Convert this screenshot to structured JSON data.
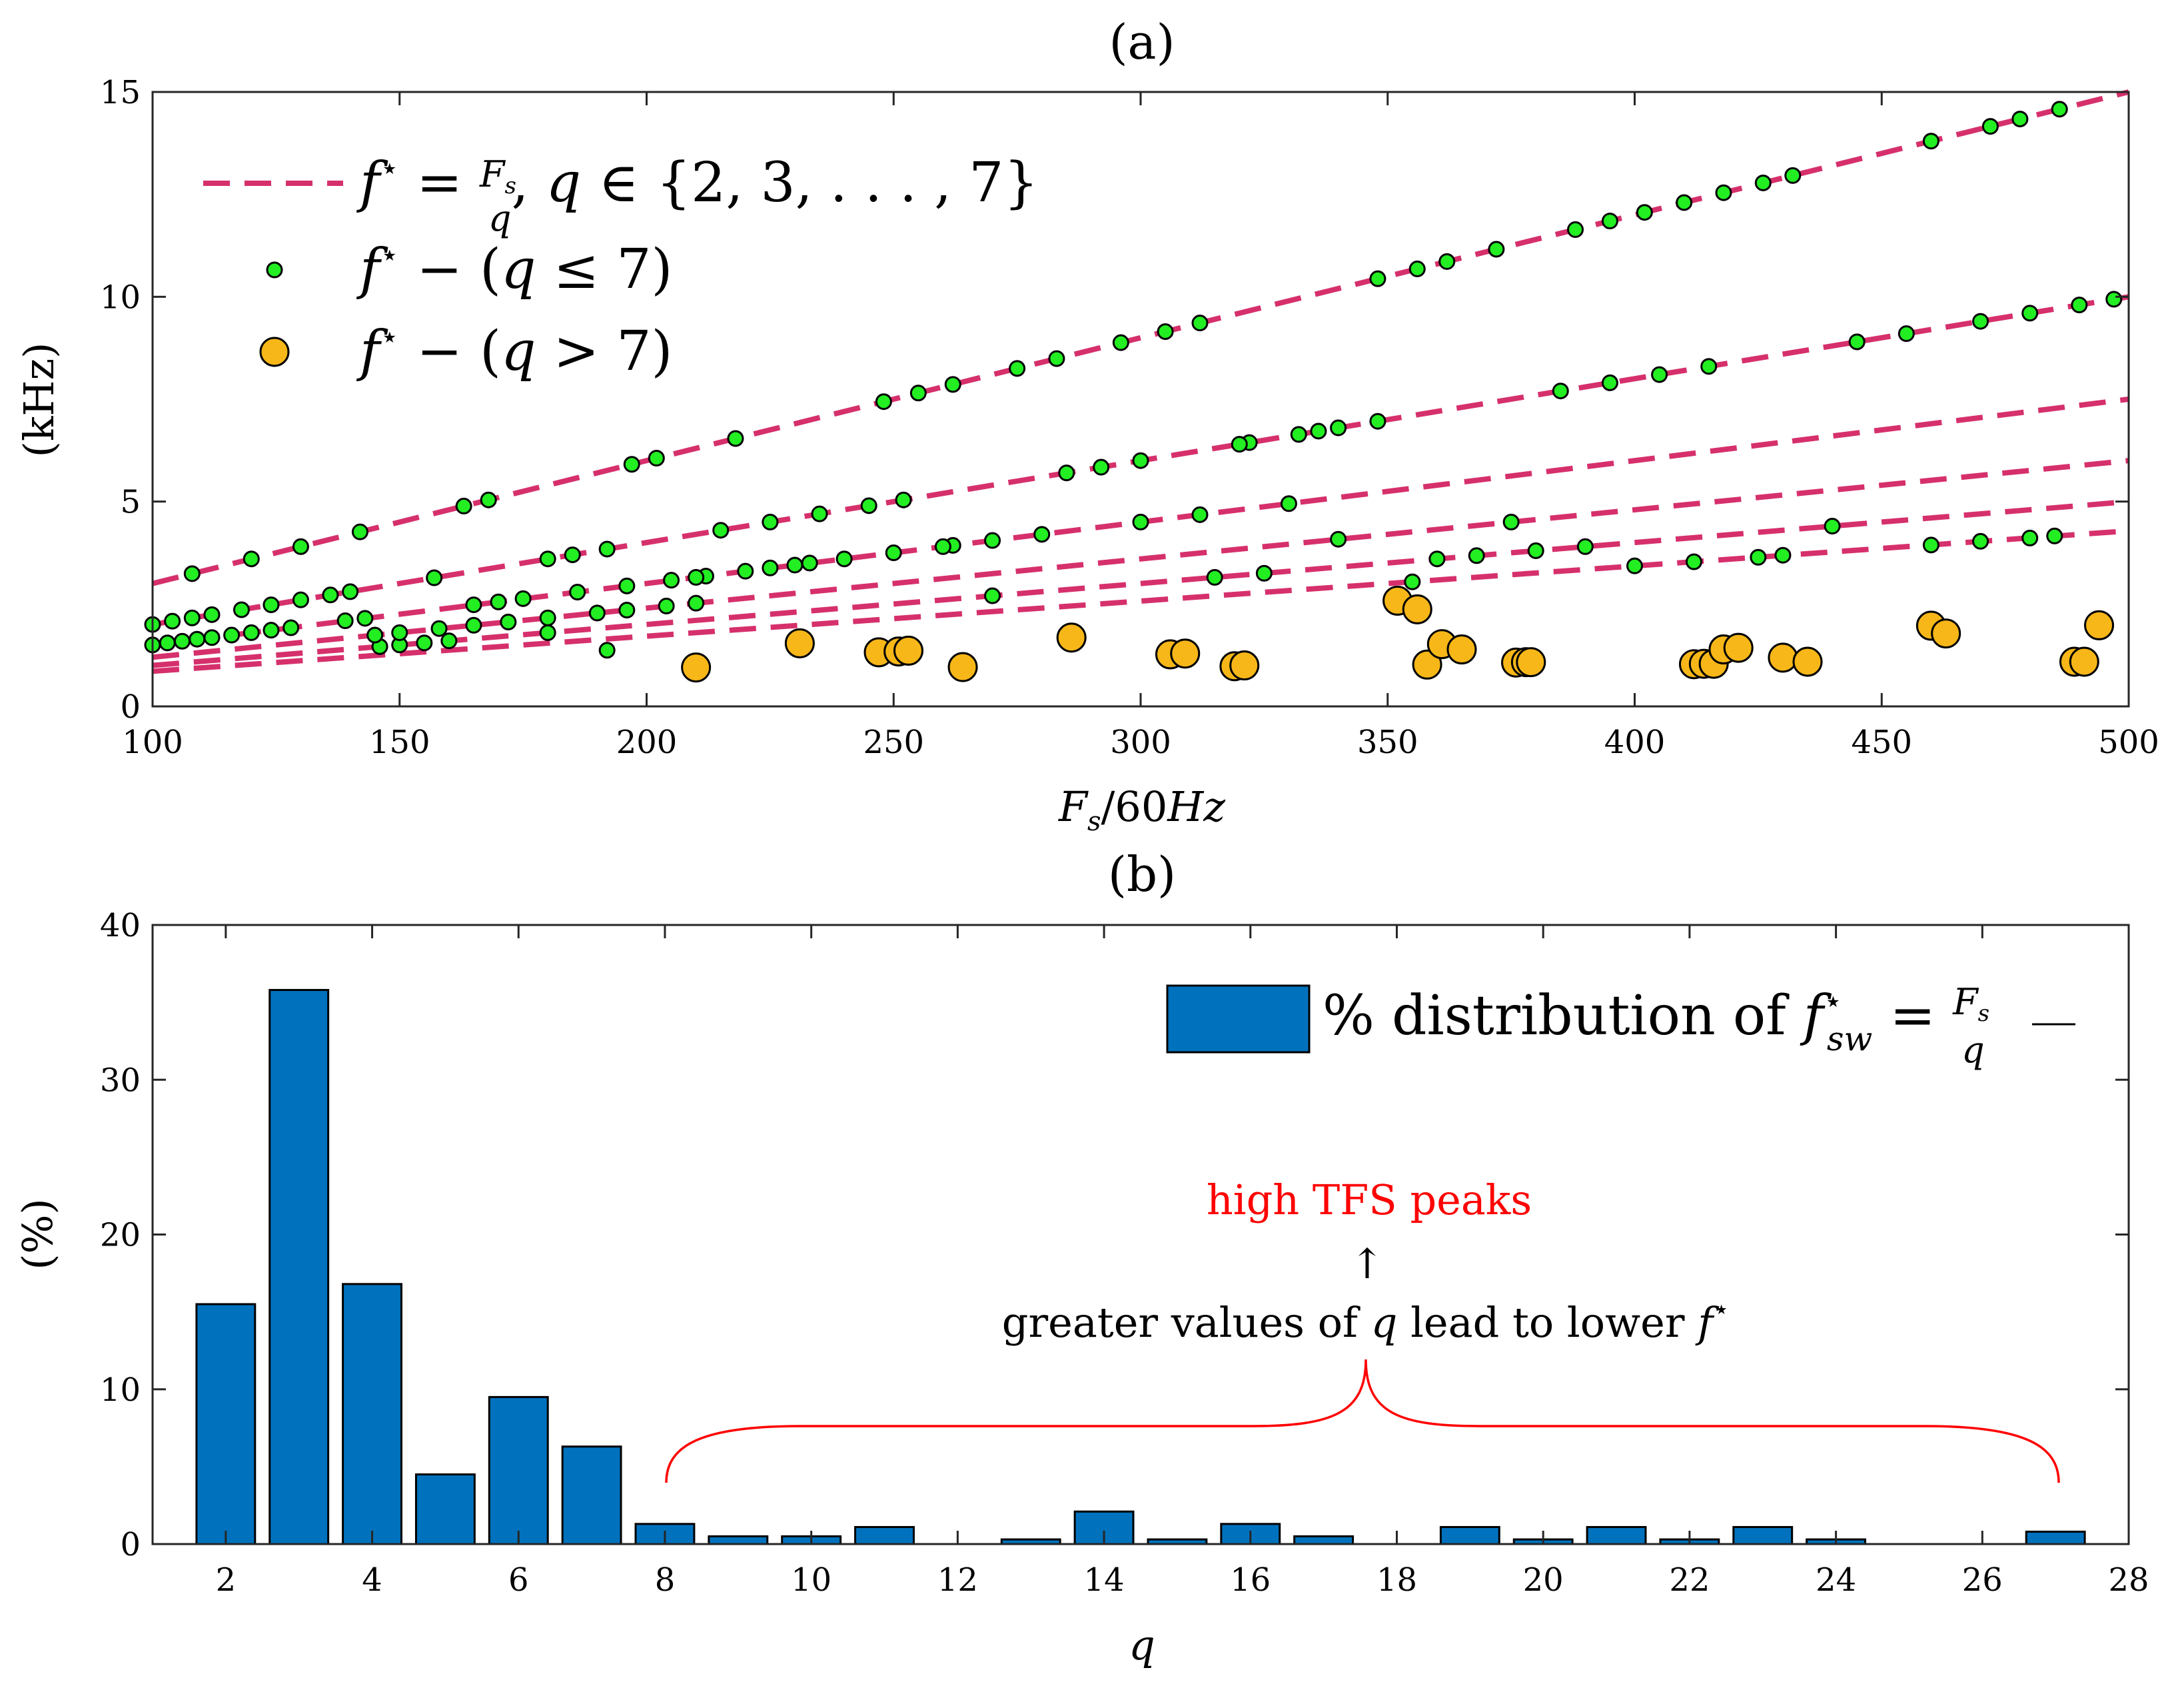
{
  "chart_data": [
    {
      "panel": "(a)",
      "type": "scatter",
      "title": "(a)",
      "xlabel": "F_s/60Hz",
      "ylabel": "(kHz)",
      "xlim": [
        100,
        500
      ],
      "ylim": [
        0,
        15
      ],
      "xticks": [
        "100",
        "150",
        "200",
        "250",
        "300",
        "350",
        "400",
        "450",
        "500"
      ],
      "yticks": [
        "0",
        "5",
        "10",
        "15"
      ],
      "grid": false,
      "legend_position": "top-left",
      "legend": [
        "f* = Fs/q, q ∈ {2, 3, ..., 7}",
        "f* − (q ≤ 7)",
        "f* − (q > 7)"
      ],
      "colors": {
        "line": "#d6306c",
        "dot_small": "#22ee22",
        "dot_large": "#f7b718",
        "edge": "#000000"
      },
      "lines": {
        "description": "f* (kHz) = x·60/q/1000",
        "q_values": [
          2,
          3,
          4,
          5,
          6,
          7
        ],
        "x_range": [
          100,
          500
        ]
      },
      "series": [
        {
          "name": "f* − (q ≤ 7)",
          "points": [
            [
              100,
              1.5
            ],
            [
              103,
              1.55
            ],
            [
              106,
              1.59
            ],
            [
              109,
              1.64
            ],
            [
              112,
              1.68
            ],
            [
              116,
              1.74
            ],
            [
              120,
              1.8
            ],
            [
              124,
              1.86
            ],
            [
              128,
              1.92
            ],
            [
              139,
              2.09
            ],
            [
              143,
              2.15
            ],
            [
              146,
              1.46
            ],
            [
              150,
              1.5
            ],
            [
              155,
              1.55
            ],
            [
              160,
              1.6
            ],
            [
              165,
              2.48
            ],
            [
              170,
              2.55
            ],
            [
              175,
              2.63
            ],
            [
              180,
              1.8
            ],
            [
              186,
              2.79
            ],
            [
              192,
              1.37
            ],
            [
              196,
              2.94
            ],
            [
              205,
              3.08
            ],
            [
              212,
              3.18
            ],
            [
              220,
              3.3
            ],
            [
              230,
              3.45
            ],
            [
              240,
              3.6
            ],
            [
              250,
              3.75
            ],
            [
              262,
              3.93
            ],
            [
              280,
              4.2
            ],
            [
              300,
              4.5
            ],
            [
              315,
              3.15
            ],
            [
              325,
              3.25
            ],
            [
              330,
              4.95
            ],
            [
              340,
              4.08
            ],
            [
              360,
              3.6
            ],
            [
              368,
              3.68
            ],
            [
              380,
              3.8
            ],
            [
              390,
              3.9
            ],
            [
              400,
              3.43
            ],
            [
              412,
              3.53
            ],
            [
              425,
              3.64
            ],
            [
              440,
              4.4
            ],
            [
              460,
              3.94
            ],
            [
              470,
              4.03
            ],
            [
              480,
              4.11
            ],
            [
              485,
              4.16
            ],
            [
              100,
              2.0
            ],
            [
              104,
              2.08
            ],
            [
              108,
              2.16
            ],
            [
              112,
              2.24
            ],
            [
              118,
              2.36
            ],
            [
              124,
              2.48
            ],
            [
              130,
              2.6
            ],
            [
              136,
              2.72
            ],
            [
              140,
              2.8
            ],
            [
              145,
              1.74
            ],
            [
              150,
              1.8
            ],
            [
              158,
              1.9
            ],
            [
              165,
              1.98
            ],
            [
              172,
              2.06
            ],
            [
              180,
              2.16
            ],
            [
              190,
              2.28
            ],
            [
              196,
              2.35
            ],
            [
              204,
              2.45
            ],
            [
              210,
              2.52
            ],
            [
              215,
              4.3
            ],
            [
              225,
              4.5
            ],
            [
              235,
              4.7
            ],
            [
              245,
              4.9
            ],
            [
              252,
              5.04
            ],
            [
              260,
              3.9
            ],
            [
              270,
              4.05
            ],
            [
              285,
              5.7
            ],
            [
              292,
              5.84
            ],
            [
              300,
              6.0
            ],
            [
              312,
              4.68
            ],
            [
              322,
              6.44
            ],
            [
              332,
              6.64
            ],
            [
              340,
              6.8
            ],
            [
              348,
              6.96
            ],
            [
              355,
              3.04
            ],
            [
              375,
              4.5
            ],
            [
              385,
              7.7
            ],
            [
              395,
              7.9
            ],
            [
              405,
              8.1
            ],
            [
              415,
              8.3
            ],
            [
              430,
              3.69
            ],
            [
              445,
              8.9
            ],
            [
              455,
              9.1
            ],
            [
              470,
              9.4
            ],
            [
              480,
              9.6
            ],
            [
              490,
              9.8
            ],
            [
              497,
              9.94
            ],
            [
              108,
              3.24
            ],
            [
              120,
              3.6
            ],
            [
              130,
              3.9
            ],
            [
              142,
              4.26
            ],
            [
              157,
              3.14
            ],
            [
              163,
              4.89
            ],
            [
              168,
              5.04
            ],
            [
              180,
              3.6
            ],
            [
              185,
              3.7
            ],
            [
              192,
              3.84
            ],
            [
              197,
              5.91
            ],
            [
              202,
              6.06
            ],
            [
              210,
              3.15
            ],
            [
              218,
              6.54
            ],
            [
              225,
              3.38
            ],
            [
              233,
              3.5
            ],
            [
              248,
              7.44
            ],
            [
              255,
              7.65
            ],
            [
              262,
              7.86
            ],
            [
              270,
              2.7
            ],
            [
              275,
              8.25
            ],
            [
              283,
              8.49
            ],
            [
              296,
              8.88
            ],
            [
              305,
              9.15
            ],
            [
              312,
              9.36
            ],
            [
              320,
              6.4
            ],
            [
              336,
              6.72
            ],
            [
              348,
              10.44
            ],
            [
              356,
              10.68
            ],
            [
              362,
              10.86
            ],
            [
              372,
              11.16
            ],
            [
              388,
              11.64
            ],
            [
              395,
              11.85
            ],
            [
              402,
              12.06
            ],
            [
              410,
              12.3
            ],
            [
              418,
              12.54
            ],
            [
              426,
              12.78
            ],
            [
              432,
              12.96
            ],
            [
              460,
              13.8
            ],
            [
              472,
              14.16
            ],
            [
              478,
              14.34
            ],
            [
              486,
              14.58
            ]
          ]
        },
        {
          "name": "f* − (q > 7)",
          "points": [
            [
              210,
              0.95
            ],
            [
              231,
              1.54
            ],
            [
              247,
              1.32
            ],
            [
              251,
              1.34
            ],
            [
              253,
              1.36
            ],
            [
              264,
              0.96
            ],
            [
              286,
              1.68
            ],
            [
              306,
              1.27
            ],
            [
              309,
              1.29
            ],
            [
              319,
              0.98
            ],
            [
              321,
              1.0
            ],
            [
              352,
              2.58
            ],
            [
              356,
              2.37
            ],
            [
              358,
              1.02
            ],
            [
              361,
              1.52
            ],
            [
              365,
              1.39
            ],
            [
              376,
              1.07
            ],
            [
              378,
              1.08
            ],
            [
              379,
              1.08
            ],
            [
              412,
              1.03
            ],
            [
              414,
              1.04
            ],
            [
              416,
              1.04
            ],
            [
              418,
              1.39
            ],
            [
              421,
              1.43
            ],
            [
              430,
              1.19
            ],
            [
              435,
              1.09
            ],
            [
              460,
              1.97
            ],
            [
              463,
              1.78
            ],
            [
              489,
              1.09
            ],
            [
              491,
              1.09
            ],
            [
              494,
              1.98
            ]
          ]
        }
      ]
    },
    {
      "panel": "(b)",
      "type": "bar",
      "title": "(b)",
      "xlabel": "q",
      "ylabel": "(%)",
      "xlim": [
        1,
        28
      ],
      "ylim": [
        0,
        40
      ],
      "xticks": [
        "2",
        "4",
        "6",
        "8",
        "10",
        "12",
        "14",
        "16",
        "18",
        "20",
        "22",
        "24",
        "26",
        "28"
      ],
      "yticks": [
        "0",
        "10",
        "20",
        "30",
        "40"
      ],
      "grid": false,
      "legend_position": "top-right",
      "legend": [
        "% distribution of f*_sw = Fs/q"
      ],
      "color": "#0072bd",
      "categories": [
        2,
        3,
        4,
        5,
        6,
        7,
        8,
        9,
        10,
        11,
        12,
        13,
        14,
        15,
        16,
        17,
        18,
        19,
        20,
        21,
        22,
        23,
        24,
        25,
        26,
        27
      ],
      "values": [
        15.5,
        35.8,
        16.8,
        4.5,
        9.5,
        6.3,
        1.3,
        0.5,
        0.5,
        1.1,
        0,
        0.3,
        2.1,
        0.3,
        1.3,
        0.5,
        0,
        1.1,
        0.3,
        1.1,
        0.3,
        1.1,
        0.3,
        0,
        0,
        0.8
      ],
      "annotations": {
        "red_text": "high TFS peaks",
        "black_text_prefix": "greater values of ",
        "black_text_q": "q",
        "black_text_mid": " lead to lower ",
        "black_text_f": "f",
        "arrow": "↑"
      }
    }
  ]
}
